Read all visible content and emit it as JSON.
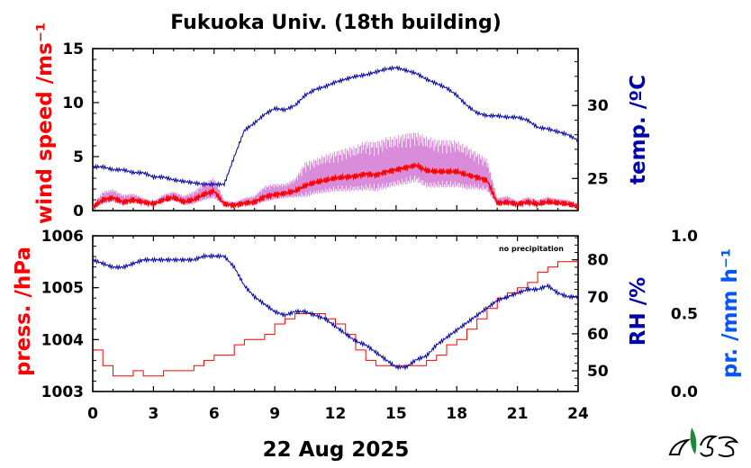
{
  "title": "Fukuoka Univ. (18th building)",
  "date_label": "22 Aug 2025",
  "colors": {
    "red": "#ff0000",
    "blue": "#0000aa",
    "light_blue": "#0055ff",
    "violet": "#cc66cc",
    "black": "#000000"
  },
  "chart_data": [
    {
      "type": "line",
      "panel": "top",
      "x_range": [
        0,
        24
      ],
      "left_axis": {
        "label": "wind speed /ms⁻¹",
        "ylim": [
          0,
          15
        ],
        "ticks": [
          0,
          5,
          10,
          15
        ]
      },
      "right_axis": {
        "label": "temp. /ºC",
        "ylim": [
          22.8,
          33.9
        ],
        "ticks": [
          25,
          30
        ]
      },
      "series": [
        {
          "axis": "left",
          "style": "gust",
          "x": [
            0,
            0.5,
            1,
            1.5,
            2,
            2.5,
            3,
            3.5,
            4,
            4.5,
            5,
            5.5,
            6,
            6.5,
            7,
            7.5,
            8,
            8.5,
            9,
            9.5,
            10,
            10.5,
            11,
            11.5,
            12,
            12.5,
            13,
            13.5,
            14,
            14.5,
            15,
            15.5,
            16,
            16.5,
            17,
            17.5,
            18,
            18.5,
            19,
            19.5,
            20,
            20.5,
            21,
            21.5,
            22,
            22.5,
            23,
            23.5,
            24
          ],
          "values": [
            0.5,
            1.8,
            2.0,
            1.5,
            1.6,
            1.2,
            0.9,
            1.5,
            1.8,
            1.4,
            1.8,
            2.6,
            3.1,
            1.0,
            0.8,
            1.2,
            1.4,
            2.3,
            2.5,
            2.5,
            3.0,
            4.5,
            4.8,
            5.2,
            5.5,
            5.8,
            6.0,
            6.5,
            6.4,
            6.8,
            6.9,
            7.2,
            7.3,
            6.9,
            6.6,
            6.6,
            6.5,
            6.0,
            5.4,
            4.8,
            1.2,
            1.4,
            0.9,
            1.3,
            1.0,
            1.3,
            1.1,
            1.0,
            0.6
          ]
        },
        {
          "axis": "left",
          "style": "mean",
          "x": [
            0,
            0.5,
            1,
            1.5,
            2,
            2.5,
            3,
            3.5,
            4,
            4.5,
            5,
            5.5,
            6,
            6.5,
            7,
            7.5,
            8,
            8.5,
            9,
            9.5,
            10,
            10.5,
            11,
            11.5,
            12,
            12.5,
            13,
            13.5,
            14,
            14.5,
            15,
            15.5,
            16,
            16.5,
            17,
            17.5,
            18,
            18.5,
            19,
            19.5,
            20,
            20.5,
            21,
            21.5,
            22,
            22.5,
            23,
            23.5,
            24
          ],
          "values": [
            0.3,
            1.0,
            1.2,
            0.8,
            1.0,
            0.8,
            0.6,
            1.0,
            1.2,
            0.8,
            1.0,
            1.5,
            1.8,
            0.6,
            0.5,
            0.7,
            0.8,
            1.3,
            1.5,
            1.6,
            1.8,
            2.3,
            2.6,
            2.8,
            3.0,
            3.1,
            3.2,
            3.4,
            3.3,
            3.6,
            3.8,
            4.0,
            4.2,
            3.7,
            3.6,
            3.6,
            3.6,
            3.3,
            3.1,
            2.8,
            0.7,
            0.8,
            0.6,
            0.8,
            0.6,
            0.8,
            0.7,
            0.6,
            0.4
          ]
        },
        {
          "axis": "right",
          "name": "temp. /ºC",
          "x": [
            0,
            0.5,
            1,
            1.5,
            2,
            2.5,
            3,
            3.5,
            4,
            4.5,
            5,
            5.5,
            6,
            6.5,
            7,
            7.5,
            8,
            8.5,
            9,
            9.5,
            10,
            10.5,
            11,
            11.5,
            12,
            12.5,
            13,
            13.5,
            14,
            14.5,
            15,
            15.5,
            16,
            16.5,
            17,
            17.5,
            18,
            18.5,
            19,
            19.5,
            20,
            20.5,
            21,
            21.5,
            22,
            22.5,
            23,
            23.5,
            24
          ],
          "values": [
            25.8,
            25.8,
            25.6,
            25.6,
            25.4,
            25.4,
            25.1,
            25.1,
            24.9,
            24.8,
            24.7,
            24.6,
            24.6,
            24.6,
            26.5,
            28.3,
            28.8,
            29.4,
            29.8,
            29.7,
            30.0,
            30.7,
            31.1,
            31.3,
            31.6,
            31.8,
            32.0,
            32.1,
            32.3,
            32.5,
            32.6,
            32.4,
            32.2,
            31.8,
            31.5,
            31.2,
            30.7,
            30.0,
            29.5,
            29.3,
            29.3,
            29.2,
            29.2,
            29.0,
            28.5,
            28.4,
            28.2,
            28.0,
            27.6
          ]
        }
      ]
    },
    {
      "type": "line",
      "panel": "bottom",
      "x_range": [
        0,
        24
      ],
      "x_label": "22 Aug 2025",
      "x_ticks": [
        "0",
        "3",
        "6",
        "9",
        "12",
        "15",
        "18",
        "21",
        "24"
      ],
      "left_axis": {
        "label": "press. /hPa",
        "ylim": [
          1003,
          1006
        ],
        "ticks": [
          1003,
          1004,
          1005,
          1006
        ]
      },
      "right_axis": {
        "label": "RH /%",
        "ylim": [
          44.4,
          86.5
        ],
        "ticks": [
          50,
          60,
          70,
          80
        ]
      },
      "third_axis": {
        "label": "pr. /mm h⁻¹",
        "ylim": [
          0.0,
          1.0
        ],
        "ticks": [
          "0.0",
          "0.5",
          "1.0"
        ]
      },
      "annotation": "no precipitation",
      "series": [
        {
          "axis": "left",
          "name": "press. /hPa",
          "x": [
            0,
            0.5,
            1,
            1.5,
            2,
            2.5,
            3,
            3.5,
            4,
            4.5,
            5,
            5.5,
            6,
            6.5,
            7,
            7.5,
            8,
            8.5,
            9,
            9.5,
            10,
            10.5,
            11,
            11.5,
            12,
            12.5,
            13,
            13.5,
            14,
            14.5,
            15,
            15.5,
            16,
            16.5,
            17,
            17.5,
            18,
            18.5,
            19,
            19.5,
            20,
            20.5,
            21,
            21.5,
            22,
            22.5,
            23,
            23.5,
            24
          ],
          "values": [
            1003.8,
            1003.5,
            1003.3,
            1003.3,
            1003.4,
            1003.3,
            1003.3,
            1003.4,
            1003.4,
            1003.4,
            1003.5,
            1003.6,
            1003.7,
            1003.7,
            1003.9,
            1004.0,
            1004.0,
            1004.1,
            1004.3,
            1004.4,
            1004.5,
            1004.5,
            1004.5,
            1004.4,
            1004.3,
            1004.1,
            1003.8,
            1003.6,
            1003.5,
            1003.5,
            1003.5,
            1003.5,
            1003.5,
            1003.6,
            1003.7,
            1003.9,
            1004.0,
            1004.2,
            1004.4,
            1004.6,
            1004.8,
            1004.9,
            1005.0,
            1005.1,
            1005.3,
            1005.4,
            1005.5,
            1005.5,
            1005.5
          ]
        },
        {
          "axis": "right",
          "name": "RH /%",
          "x": [
            0,
            0.5,
            1,
            1.5,
            2,
            2.5,
            3,
            3.5,
            4,
            4.5,
            5,
            5.5,
            6,
            6.5,
            7,
            7.5,
            8,
            8.5,
            9,
            9.5,
            10,
            10.5,
            11,
            11.5,
            12,
            12.5,
            13,
            13.5,
            14,
            14.5,
            15,
            15.5,
            16,
            16.5,
            17,
            17.5,
            18,
            18.5,
            19,
            19.5,
            20,
            20.5,
            21,
            21.5,
            22,
            22.5,
            23,
            23.5,
            24
          ],
          "values": [
            80,
            79,
            78,
            78,
            79,
            80,
            80,
            80,
            80,
            80,
            80,
            81,
            81,
            81,
            78,
            73,
            70,
            68,
            66,
            65,
            66,
            66,
            65,
            64,
            62,
            60,
            58,
            57,
            55,
            53,
            51,
            51,
            53,
            54,
            57,
            59,
            61,
            63,
            65,
            67,
            69,
            70,
            71,
            72,
            72,
            73,
            71,
            70,
            70
          ]
        }
      ]
    }
  ]
}
